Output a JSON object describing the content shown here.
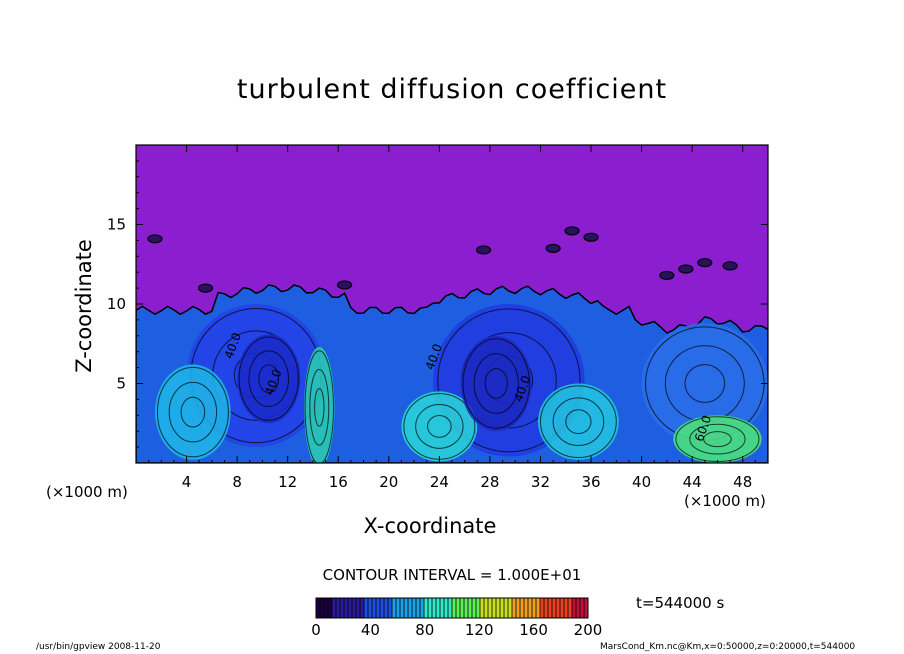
{
  "chart_data": {
    "type": "heatmap",
    "title": "turbulent diffusion coefficient",
    "xlabel": "X-coordinate",
    "ylabel": "Z-coordinate",
    "x_unit": "(×1000 m)",
    "x_ticks": [
      4,
      8,
      12,
      16,
      20,
      24,
      28,
      32,
      36,
      40,
      44,
      48
    ],
    "y_ticks": [
      5,
      10,
      15
    ],
    "xlim": [
      0,
      50
    ],
    "ylim": [
      0,
      20
    ],
    "colorbar": {
      "ticks": [
        0,
        40,
        80,
        120,
        160,
        200
      ],
      "range": [
        0,
        200
      ],
      "colors": [
        "#1a0040",
        "#2a1a9a",
        "#1f4fe0",
        "#1aa0e8",
        "#2fe8c8",
        "#5cf05a",
        "#c8e020",
        "#f0a020",
        "#e84020",
        "#c0103a"
      ]
    },
    "contour_interval": "CONTOUR INTERVAL = 1.000E+01",
    "time": "t=544000 s",
    "contour_labels": [
      "40.0",
      "40.0",
      "40.0",
      "60.0",
      "40.0"
    ],
    "background_color": "#8b1fd0"
  },
  "footer": {
    "left": "/usr/bin/gpview   2008-11-20",
    "right": "MarsCond_Km.nc@Km,x=0:50000,z=0:20000,t=544000"
  }
}
